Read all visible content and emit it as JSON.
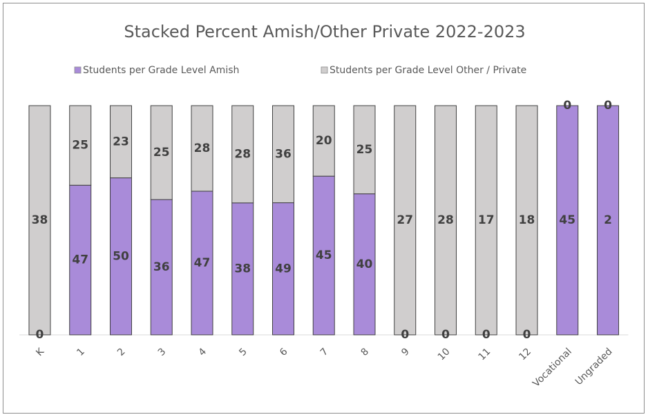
{
  "chart_data": {
    "type": "bar",
    "stacking": "percent",
    "title": "Stacked Percent Amish/Other Private 2022-2023",
    "categories": [
      "K",
      "1",
      "2",
      "3",
      "4",
      "5",
      "6",
      "7",
      "8",
      "9",
      "10",
      "11",
      "12",
      "Vocational",
      "Ungraded"
    ],
    "series": [
      {
        "name": "Students per Grade Level Amish",
        "color": "#a98bd9",
        "values": [
          0,
          47,
          50,
          36,
          47,
          38,
          49,
          45,
          40,
          0,
          0,
          0,
          0,
          45,
          2
        ]
      },
      {
        "name": "Students per Grade Level Other / Private",
        "color": "#d0cece",
        "values": [
          38,
          25,
          23,
          25,
          28,
          28,
          36,
          20,
          25,
          27,
          28,
          17,
          18,
          0,
          0
        ]
      }
    ],
    "legend": "top"
  }
}
